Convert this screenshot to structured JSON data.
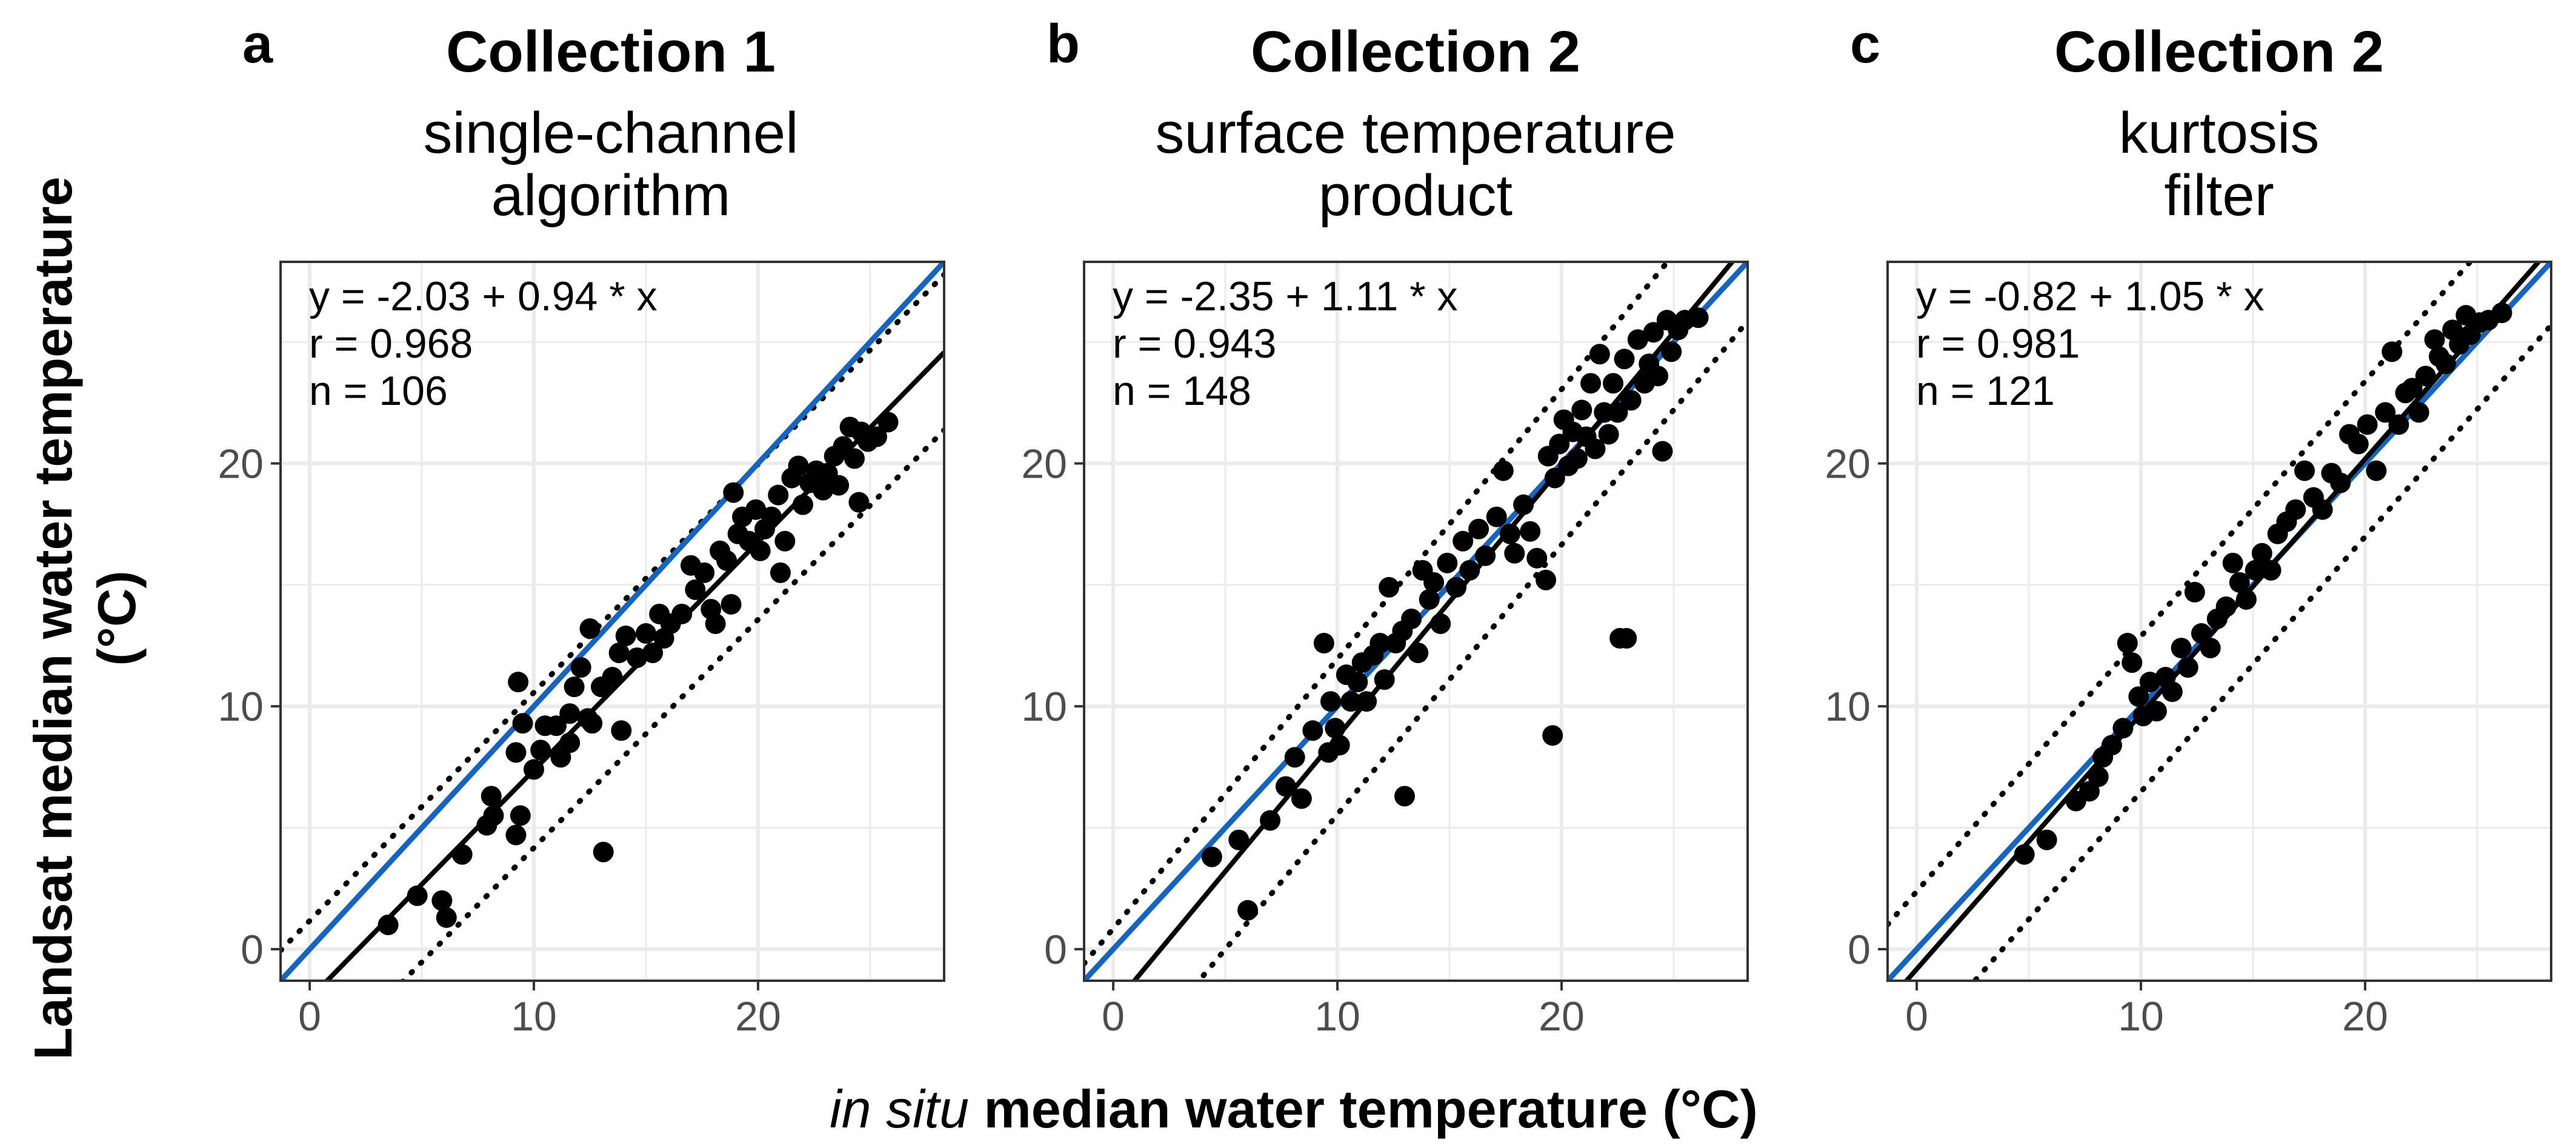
{
  "figure": {
    "ylabel_line1": "Landsat median water temperature",
    "ylabel_line2": "(°C)",
    "xlabel_italic": "in situ",
    "xlabel_rest": " median water temperature (°C)"
  },
  "colors": {
    "identity_line": "#1565C0",
    "fit_line": "#000000",
    "points": "#000000",
    "grid": "#ebebeb",
    "tick_text": "#4d4d4d"
  },
  "chart_data": [
    {
      "type": "scatter",
      "panel": "a",
      "title": "Collection 1",
      "subtitle": [
        "single-channel",
        "algorithm"
      ],
      "equation": "y = -2.03 + 0.94 * x",
      "r_text": "r = 0.968",
      "n_text": "n = 106",
      "intercept": -2.03,
      "slope": 0.94,
      "xlim": [
        -1.3,
        28.3
      ],
      "ylim": [
        -1.3,
        28.3
      ],
      "x_ticks": [
        0,
        10,
        20
      ],
      "y_ticks": [
        0,
        10,
        20
      ],
      "identity_line": true,
      "grid": true,
      "points": [
        [
          3.5,
          1
        ],
        [
          4.8,
          2.2
        ],
        [
          5.9,
          2
        ],
        [
          6.1,
          1.3
        ],
        [
          6.8,
          3.9
        ],
        [
          7.9,
          5.1
        ],
        [
          8.2,
          5.5
        ],
        [
          8.1,
          6.3
        ],
        [
          9.2,
          4.7
        ],
        [
          9.4,
          5.5
        ],
        [
          9.2,
          8.1
        ],
        [
          9.5,
          9.3
        ],
        [
          9.3,
          11
        ],
        [
          10,
          7.4
        ],
        [
          10.3,
          8.2
        ],
        [
          10.5,
          9.2
        ],
        [
          11,
          9.2
        ],
        [
          11.2,
          7.9
        ],
        [
          11.6,
          8.5
        ],
        [
          11.6,
          9.7
        ],
        [
          11.8,
          10.8
        ],
        [
          12.1,
          11.6
        ],
        [
          12.4,
          9.5
        ],
        [
          12.6,
          9.3
        ],
        [
          13.1,
          4
        ],
        [
          12.5,
          13.2
        ],
        [
          13,
          10.8
        ],
        [
          13.5,
          11.2
        ],
        [
          13.8,
          12.2
        ],
        [
          14.1,
          12.9
        ],
        [
          13.9,
          9
        ],
        [
          14.6,
          12
        ],
        [
          15,
          13
        ],
        [
          15.3,
          12.2
        ],
        [
          15.6,
          13.8
        ],
        [
          15.8,
          12.8
        ],
        [
          16.1,
          13.4
        ],
        [
          16.6,
          13.8
        ],
        [
          17,
          15.8
        ],
        [
          17.2,
          14.8
        ],
        [
          17.6,
          15.5
        ],
        [
          17.9,
          14
        ],
        [
          18.1,
          13.4
        ],
        [
          18.3,
          16.4
        ],
        [
          18.6,
          16
        ],
        [
          18.8,
          14.2
        ],
        [
          19.1,
          17.1
        ],
        [
          19.3,
          17.8
        ],
        [
          18.9,
          18.8
        ],
        [
          19.6,
          16.8
        ],
        [
          19.9,
          18.1
        ],
        [
          20.1,
          16.4
        ],
        [
          20.3,
          17.3
        ],
        [
          20.6,
          17.8
        ],
        [
          20.9,
          18.7
        ],
        [
          21,
          15.5
        ],
        [
          21.2,
          16.8
        ],
        [
          21.5,
          19.4
        ],
        [
          21.8,
          19.9
        ],
        [
          22,
          18.3
        ],
        [
          22.3,
          19.2
        ],
        [
          22.6,
          19.7
        ],
        [
          22.9,
          18.9
        ],
        [
          23.1,
          19.6
        ],
        [
          23.4,
          20.3
        ],
        [
          23.6,
          19.1
        ],
        [
          23.8,
          20.7
        ],
        [
          24.1,
          21.5
        ],
        [
          24.3,
          20.2
        ],
        [
          24.5,
          18.4
        ],
        [
          24.6,
          21.3
        ],
        [
          24.9,
          20.9
        ],
        [
          25.3,
          21.1
        ],
        [
          25.8,
          21.7
        ]
      ]
    },
    {
      "type": "scatter",
      "panel": "b",
      "title": "Collection 2",
      "subtitle": [
        "surface temperature",
        "product"
      ],
      "equation": "y = -2.35 + 1.11 * x",
      "r_text": "r = 0.943",
      "n_text": "n = 148",
      "intercept": -2.35,
      "slope": 1.11,
      "xlim": [
        -1.3,
        28.3
      ],
      "ylim": [
        -1.3,
        28.3
      ],
      "x_ticks": [
        0,
        10,
        20
      ],
      "y_ticks": [
        0,
        10,
        20
      ],
      "identity_line": true,
      "grid": true,
      "points": [
        [
          4.4,
          3.8
        ],
        [
          5.6,
          4.5
        ],
        [
          6,
          1.6
        ],
        [
          7,
          5.3
        ],
        [
          7.7,
          6.7
        ],
        [
          8.1,
          7.9
        ],
        [
          8.4,
          6.2
        ],
        [
          8.9,
          9
        ],
        [
          9.4,
          12.6
        ],
        [
          9.6,
          8.1
        ],
        [
          9.7,
          10.2
        ],
        [
          9.9,
          9.1
        ],
        [
          10.1,
          8.4
        ],
        [
          10.4,
          11.3
        ],
        [
          10.6,
          10.2
        ],
        [
          10.9,
          11
        ],
        [
          11.1,
          11.8
        ],
        [
          11.3,
          10.2
        ],
        [
          11.6,
          12.1
        ],
        [
          11.9,
          12.6
        ],
        [
          12.1,
          11.1
        ],
        [
          12.3,
          14.9
        ],
        [
          12.6,
          12.6
        ],
        [
          12.9,
          13.1
        ],
        [
          13,
          6.3
        ],
        [
          13.3,
          13.6
        ],
        [
          13.6,
          12.2
        ],
        [
          13.8,
          15.6
        ],
        [
          14.1,
          14.4
        ],
        [
          14.3,
          15.1
        ],
        [
          14.6,
          13.4
        ],
        [
          14.9,
          15.9
        ],
        [
          15.3,
          14.9
        ],
        [
          15.6,
          16.8
        ],
        [
          15.9,
          15.6
        ],
        [
          16.3,
          17.3
        ],
        [
          16.6,
          16.2
        ],
        [
          17.1,
          17.8
        ],
        [
          17.4,
          19.7
        ],
        [
          17.7,
          17.1
        ],
        [
          17.9,
          16.3
        ],
        [
          18.3,
          18.3
        ],
        [
          18.6,
          17.2
        ],
        [
          18.9,
          16.1
        ],
        [
          19.3,
          15.2
        ],
        [
          19.4,
          20.3
        ],
        [
          19.7,
          19.4
        ],
        [
          19.6,
          8.8
        ],
        [
          19.9,
          20.8
        ],
        [
          20.1,
          21.8
        ],
        [
          20.3,
          19.9
        ],
        [
          20.5,
          21.3
        ],
        [
          20.7,
          20.2
        ],
        [
          20.9,
          22.2
        ],
        [
          21.1,
          21.1
        ],
        [
          21.3,
          23.3
        ],
        [
          21.5,
          20.6
        ],
        [
          21.7,
          24.5
        ],
        [
          21.9,
          22.1
        ],
        [
          22.1,
          21.2
        ],
        [
          22.3,
          23.3
        ],
        [
          22.6,
          12.8
        ],
        [
          22.9,
          12.8
        ],
        [
          22.5,
          22.1
        ],
        [
          22.8,
          24.3
        ],
        [
          23.1,
          22.6
        ],
        [
          23.4,
          25.1
        ],
        [
          23.7,
          23.3
        ],
        [
          23.9,
          24.1
        ],
        [
          24.1,
          25.4
        ],
        [
          24.3,
          23.6
        ],
        [
          24.5,
          20.5
        ],
        [
          24.7,
          25.9
        ],
        [
          24.9,
          24.6
        ],
        [
          25.2,
          25.5
        ],
        [
          25.5,
          25.9
        ],
        [
          26.1,
          26
        ]
      ]
    },
    {
      "type": "scatter",
      "panel": "c",
      "title": "Collection 2",
      "subtitle": [
        "kurtosis",
        "filter"
      ],
      "equation": "y = -0.82 + 1.05 * x",
      "r_text": "r = 0.981",
      "n_text": "n = 121",
      "intercept": -0.82,
      "slope": 1.05,
      "xlim": [
        -1.3,
        28.3
      ],
      "ylim": [
        -1.3,
        28.3
      ],
      "x_ticks": [
        0,
        10,
        20
      ],
      "y_ticks": [
        0,
        10,
        20
      ],
      "identity_line": true,
      "grid": true,
      "points": [
        [
          4.8,
          3.9
        ],
        [
          5.8,
          4.5
        ],
        [
          7.1,
          6.1
        ],
        [
          7.7,
          6.5
        ],
        [
          8.1,
          7.1
        ],
        [
          8.3,
          7.9
        ],
        [
          8.7,
          8.4
        ],
        [
          9.2,
          9.1
        ],
        [
          9.4,
          12.6
        ],
        [
          9.6,
          11.8
        ],
        [
          9.9,
          10.4
        ],
        [
          10.1,
          9.6
        ],
        [
          10.4,
          11
        ],
        [
          10.7,
          9.8
        ],
        [
          11.1,
          11.2
        ],
        [
          11.4,
          10.6
        ],
        [
          11.8,
          12.4
        ],
        [
          12.1,
          11.6
        ],
        [
          12.4,
          14.7
        ],
        [
          12.7,
          13
        ],
        [
          13.1,
          12.4
        ],
        [
          13.4,
          13.6
        ],
        [
          13.8,
          14.1
        ],
        [
          14.1,
          15.9
        ],
        [
          14.4,
          15.1
        ],
        [
          14.7,
          14.4
        ],
        [
          15.1,
          15.6
        ],
        [
          15.4,
          16.3
        ],
        [
          15.8,
          15.6
        ],
        [
          16.1,
          17.1
        ],
        [
          16.5,
          17.6
        ],
        [
          16.9,
          18.1
        ],
        [
          17.3,
          19.7
        ],
        [
          17.7,
          18.6
        ],
        [
          18.1,
          18.1
        ],
        [
          18.5,
          19.6
        ],
        [
          18.9,
          19.2
        ],
        [
          19.3,
          21.2
        ],
        [
          19.7,
          20.8
        ],
        [
          20.1,
          21.6
        ],
        [
          20.5,
          19.7
        ],
        [
          20.9,
          22.1
        ],
        [
          21.2,
          24.6
        ],
        [
          21.5,
          21.6
        ],
        [
          21.8,
          22.9
        ],
        [
          22.1,
          23.1
        ],
        [
          22.4,
          22.1
        ],
        [
          22.7,
          23.6
        ],
        [
          23.1,
          25.1
        ],
        [
          23.3,
          24.4
        ],
        [
          23.6,
          24.1
        ],
        [
          23.9,
          25.5
        ],
        [
          24.2,
          24.9
        ],
        [
          24.5,
          26.1
        ],
        [
          24.7,
          25.3
        ],
        [
          25.1,
          25.8
        ],
        [
          25.5,
          25.9
        ],
        [
          26.1,
          26.2
        ]
      ]
    }
  ]
}
